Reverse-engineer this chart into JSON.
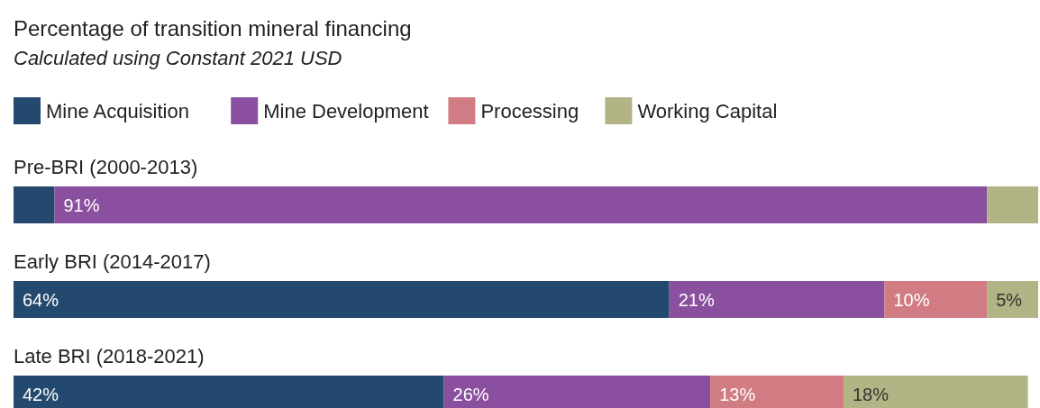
{
  "chart_data": {
    "type": "bar",
    "orientation": "horizontal",
    "stacked": true,
    "title": "Percentage of transition mineral financing",
    "subtitle": "Calculated using Constant 2021 USD",
    "categories": [
      "Pre-BRI (2000-2013)",
      "Early BRI (2014-2017)",
      "Late BRI (2018-2021)"
    ],
    "xlim": [
      0,
      100
    ],
    "tick_labels": false,
    "legend": "top left",
    "series": [
      {
        "name": "Mine Acquisition",
        "color": "#24496e",
        "values": [
          4,
          64,
          42
        ],
        "value_labels": [
          null,
          "64%",
          "42%"
        ]
      },
      {
        "name": "Mine Development",
        "color": "#8a4f9e",
        "values": [
          91,
          21,
          26
        ],
        "value_labels": [
          "91%",
          "21%",
          "26%"
        ]
      },
      {
        "name": "Processing",
        "color": "#d07c82",
        "values": [
          0,
          10,
          13
        ],
        "value_labels": [
          null,
          "10%",
          "13%"
        ]
      },
      {
        "name": "Working Capital",
        "color": "#b3b486",
        "values": [
          5,
          5,
          18
        ],
        "value_labels": [
          null,
          "5%",
          "18%"
        ]
      }
    ]
  }
}
